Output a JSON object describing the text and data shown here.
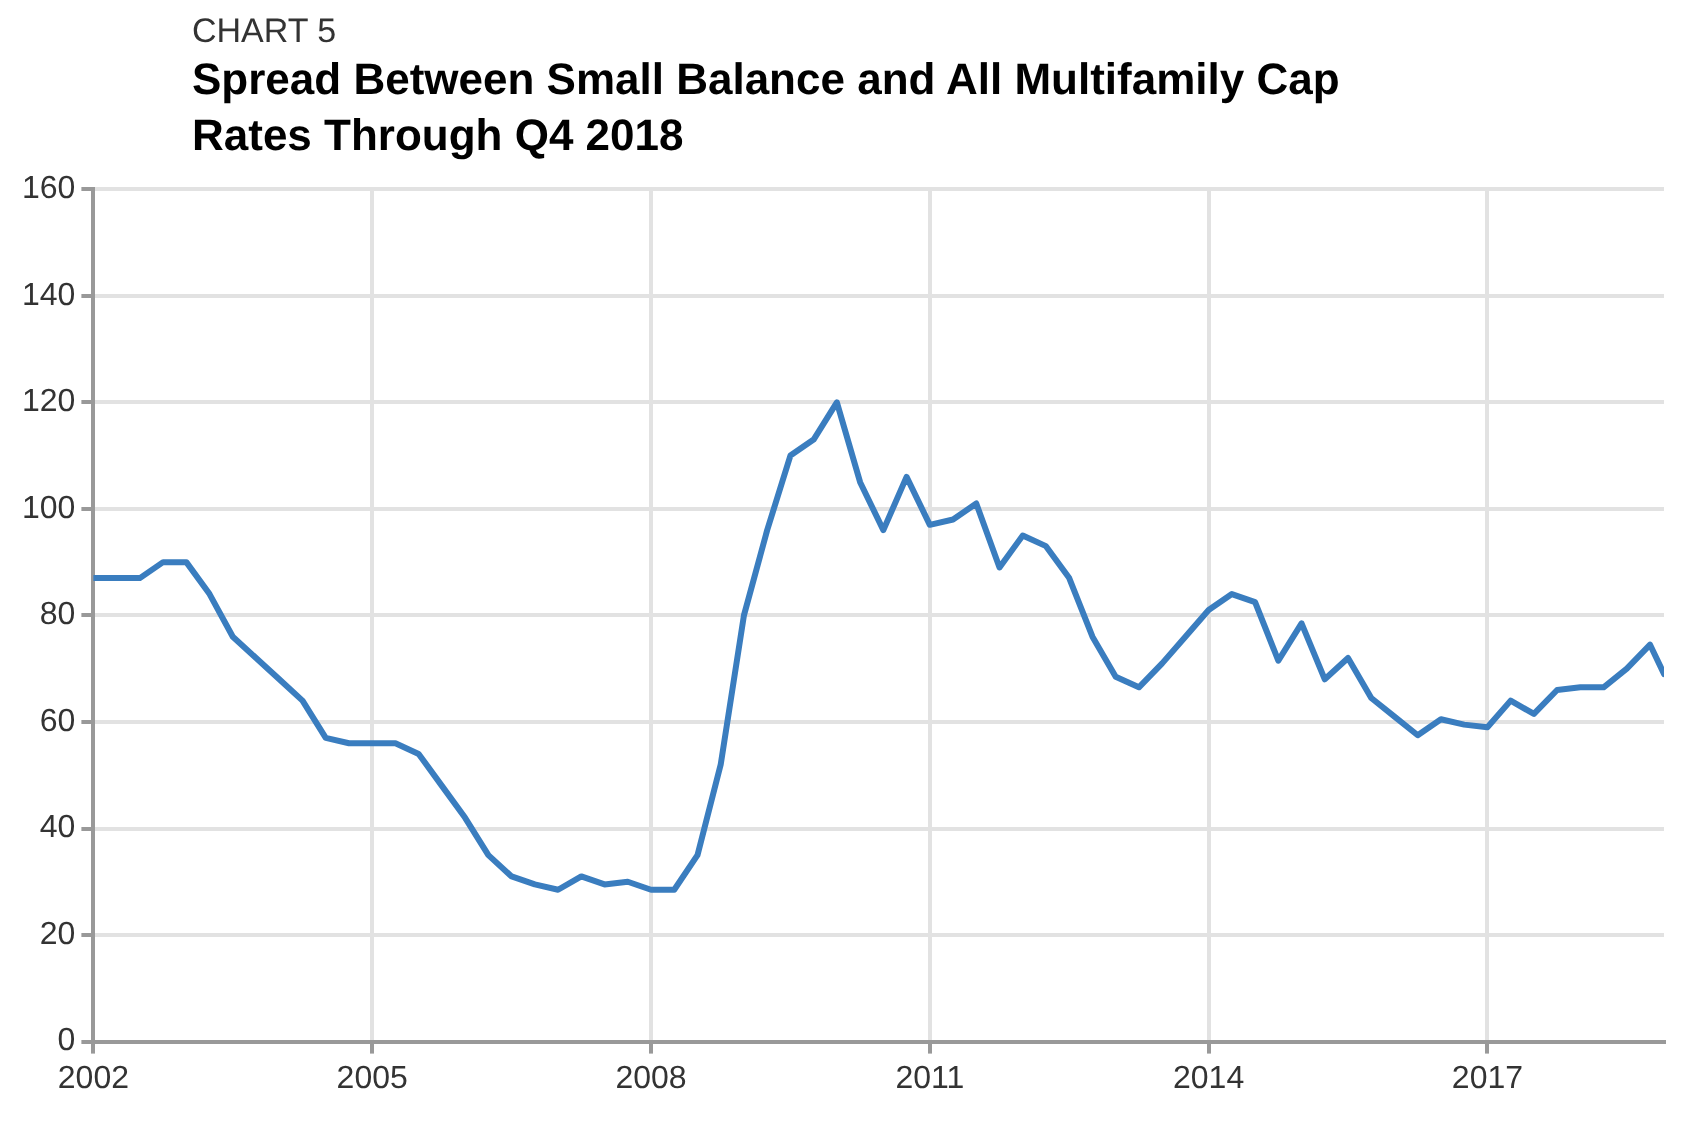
{
  "chart_data": {
    "type": "line",
    "title": "Spread Between Small Balance and All Multifamily Cap Rates Through Q4 2018",
    "subtitle": "CHART 5",
    "x": [
      2002,
      2002.25,
      2002.5,
      2002.75,
      2003,
      2003.25,
      2003.5,
      2003.75,
      2004,
      2004.25,
      2004.5,
      2004.75,
      2005,
      2005.25,
      2005.5,
      2005.75,
      2006,
      2006.25,
      2006.5,
      2006.75,
      2007,
      2007.25,
      2007.5,
      2007.75,
      2008,
      2008.25,
      2008.5,
      2008.75,
      2009,
      2009.25,
      2009.5,
      2009.75,
      2010,
      2010.25,
      2010.5,
      2010.75,
      2011,
      2011.25,
      2011.5,
      2011.75,
      2012,
      2012.25,
      2012.5,
      2012.75,
      2013,
      2013.25,
      2013.5,
      2013.75,
      2014,
      2014.25,
      2014.5,
      2014.75,
      2015,
      2015.25,
      2015.5,
      2015.75,
      2016,
      2016.25,
      2016.5,
      2016.75,
      2017,
      2017.25,
      2017.5,
      2017.75,
      2018,
      2018.25,
      2018.5,
      2018.75,
      2018.9
    ],
    "series": [
      {
        "color": "#3a7dbf",
        "values": [
          87,
          87,
          87,
          90,
          90,
          84,
          76,
          72,
          68,
          64,
          57,
          56,
          56,
          56,
          54,
          48,
          42,
          35,
          31,
          29.5,
          28.5,
          31,
          29.5,
          30,
          28.5,
          28.5,
          35,
          52,
          80,
          96,
          110,
          113,
          120,
          105,
          96,
          106,
          97,
          98,
          101,
          89,
          95,
          93,
          87,
          76,
          68.5,
          66.5,
          71,
          76,
          81,
          84,
          82.5,
          71.5,
          78.5,
          68,
          72,
          64.5,
          61,
          57.5,
          60.5,
          59.5,
          59,
          64,
          61.5,
          66,
          66.5,
          66.5,
          70,
          74.5,
          69
        ]
      }
    ],
    "xlim": [
      2002,
      2018.9
    ],
    "xticks": [
      2002,
      2005,
      2008,
      2011,
      2014,
      2017
    ],
    "ylim": [
      0,
      160
    ],
    "yticks": [
      0,
      20,
      40,
      60,
      80,
      100,
      120,
      140,
      160
    ],
    "grid": true,
    "legend": false,
    "marker": "none",
    "line_style": "solid"
  }
}
